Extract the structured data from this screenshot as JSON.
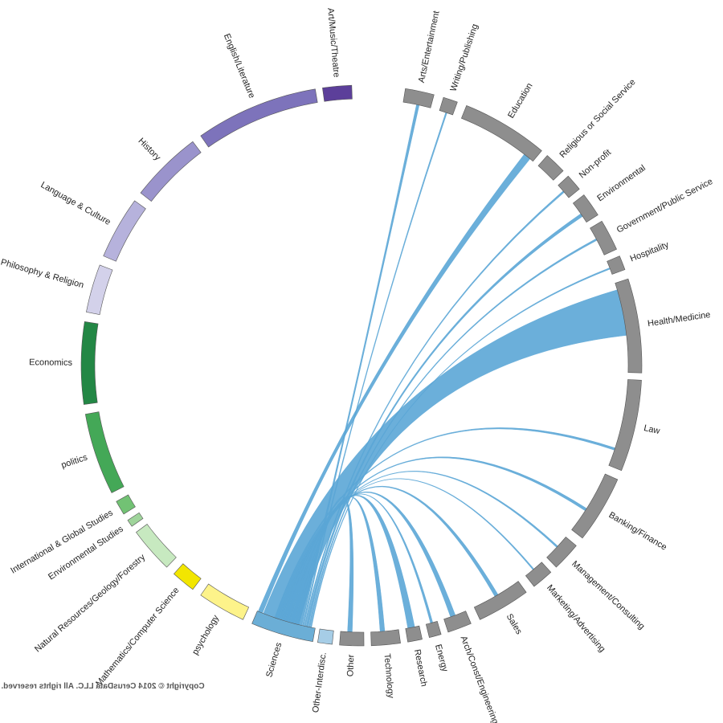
{
  "copyright": "Copyright © 2014 CerusData LLC.  All rights reserved.",
  "colors": {
    "career": "#8e8e8e",
    "ribbon": "#5ba6d6",
    "stroke": "#555555"
  },
  "chart_data": {
    "type": "chord",
    "mirrored": true,
    "majors": [
      {
        "name": "Art/Music/Theatre",
        "color": "#5c3f9a",
        "angle": [
          2,
          8
        ]
      },
      {
        "name": "English/Literature",
        "color": "#7d73bb",
        "angle": [
          9.5,
          35
        ]
      },
      {
        "name": "History",
        "color": "#9a93cc",
        "angle": [
          37,
          52
        ]
      },
      {
        "name": "Language & Culture",
        "color": "#b6b2dc",
        "angle": [
          54,
          67
        ]
      },
      {
        "name": "Philosophy & Religion",
        "color": "#d3d1ea",
        "angle": [
          69,
          79
        ]
      },
      {
        "name": "Economics",
        "color": "#238745",
        "angle": [
          81,
          98
        ]
      },
      {
        "name": "politics",
        "color": "#44a857",
        "angle": [
          100,
          117
        ]
      },
      {
        "name": "International & Global Studies",
        "color": "#72c274",
        "angle": [
          119,
          122
        ]
      },
      {
        "name": "Environmental Studies",
        "color": "#9fd49b",
        "angle": [
          123.5,
          125
        ]
      },
      {
        "name": "Natural Resources/Geology/Forestry",
        "color": "#c7e9c0",
        "angle": [
          126.5,
          136
        ]
      },
      {
        "name": "Mathematics/Computer Science",
        "color": "#f2e600",
        "angle": [
          138,
          143
        ]
      },
      {
        "name": "psychology",
        "color": "#fdf38a",
        "angle": [
          145,
          155
        ]
      }
    ],
    "careers": [
      {
        "name": "Sciences",
        "angle": [
          157,
          170
        ],
        "color": "#6baed6"
      },
      {
        "name": "Other-Interdisc.",
        "angle": [
          171,
          174
        ],
        "color": "#a6cde6"
      },
      {
        "name": "Other",
        "angle": [
          175.5,
          180.5
        ]
      },
      {
        "name": "Technology",
        "angle": [
          182,
          188
        ]
      },
      {
        "name": "Research",
        "angle": [
          189.5,
          192.5
        ]
      },
      {
        "name": "Energy",
        "angle": [
          194,
          196.5
        ]
      },
      {
        "name": "Arch/Const/Engineering",
        "angle": [
          198,
          203
        ]
      },
      {
        "name": "Sales",
        "angle": [
          205,
          216
        ]
      },
      {
        "name": "Marketing/Advertising",
        "angle": [
          218,
          222.5
        ]
      },
      {
        "name": "Management/Consulting",
        "angle": [
          224,
          230
        ]
      },
      {
        "name": "Banking/Finance",
        "angle": [
          232,
          246
        ]
      },
      {
        "name": "Law",
        "angle": [
          248,
          267
        ]
      },
      {
        "name": "Health/Medicine",
        "angle": [
          268.5,
          288
        ]
      },
      {
        "name": "Hospitality",
        "angle": [
          290,
          293
        ]
      },
      {
        "name": "Government/Public Service",
        "angle": [
          294.5,
          301
        ]
      },
      {
        "name": "Environmental",
        "angle": [
          302.5,
          307.5
        ]
      },
      {
        "name": "Non-profit",
        "angle": [
          309,
          312.5
        ]
      },
      {
        "name": "Religious or Social Service",
        "angle": [
          314,
          318.5
        ]
      },
      {
        "name": "Education",
        "angle": [
          320,
          338
        ]
      },
      {
        "name": "Writing/Publishing",
        "angle": [
          340,
          343
        ]
      },
      {
        "name": "Arts/Entertainment",
        "angle": [
          345,
          351
        ]
      }
    ],
    "flows": [
      {
        "target": "Education",
        "src": [
          157.2,
          158.2
        ],
        "tgt": [
          320.8,
          322.4
        ]
      },
      {
        "target": "Health/Medicine",
        "src": [
          158.4,
          166.5
        ],
        "tgt": [
          276.5,
          286.5
        ]
      },
      {
        "target": "Arts/Entertainment",
        "src": [
          166.6,
          167.1
        ],
        "tgt": [
          347.5,
          348.1
        ]
      },
      {
        "target": "Writing/Publishing",
        "src": [
          167.2,
          167.5
        ],
        "tgt": [
          341.3,
          341.6
        ]
      },
      {
        "target": "Non-profit",
        "src": [
          167.6,
          167.9
        ],
        "tgt": [
          310.5,
          310.9
        ]
      },
      {
        "target": "Environmental",
        "src": [
          168.0,
          168.5
        ],
        "tgt": [
          304.0,
          304.7
        ]
      },
      {
        "target": "Government/Public Service",
        "src": [
          168.6,
          168.9
        ],
        "tgt": [
          298.0,
          298.4
        ]
      },
      {
        "target": "Hospitality",
        "src": [
          169.0,
          169.2
        ],
        "tgt": [
          291.2,
          291.5
        ]
      },
      {
        "target": "Law",
        "src": [
          161.0,
          161.4
        ],
        "tgt": [
          251.5,
          252.0
        ]
      },
      {
        "target": "Banking/Finance",
        "src": [
          161.5,
          161.9
        ],
        "tgt": [
          237.0,
          237.6
        ]
      },
      {
        "target": "Management/Consulting",
        "src": [
          162.0,
          162.3
        ],
        "tgt": [
          227.0,
          227.4
        ]
      },
      {
        "target": "Marketing/Advertising",
        "src": [
          162.4,
          162.6
        ],
        "tgt": [
          220.0,
          220.3
        ]
      },
      {
        "target": "Sales",
        "src": [
          162.7,
          163.2
        ],
        "tgt": [
          210.0,
          210.8
        ]
      },
      {
        "target": "Arch/Const/Engineering",
        "src": [
          163.3,
          164.0
        ],
        "tgt": [
          199.5,
          200.6
        ]
      },
      {
        "target": "Energy",
        "src": [
          164.1,
          164.4
        ],
        "tgt": [
          195.0,
          195.5
        ]
      },
      {
        "target": "Research",
        "src": [
          164.5,
          165.3
        ],
        "tgt": [
          190.0,
          191.5
        ]
      },
      {
        "target": "Technology",
        "src": [
          165.4,
          165.9
        ],
        "tgt": [
          184.0,
          185.0
        ]
      },
      {
        "target": "Other",
        "src": [
          166.0,
          166.5
        ],
        "tgt": [
          177.0,
          178.0
        ]
      }
    ]
  }
}
